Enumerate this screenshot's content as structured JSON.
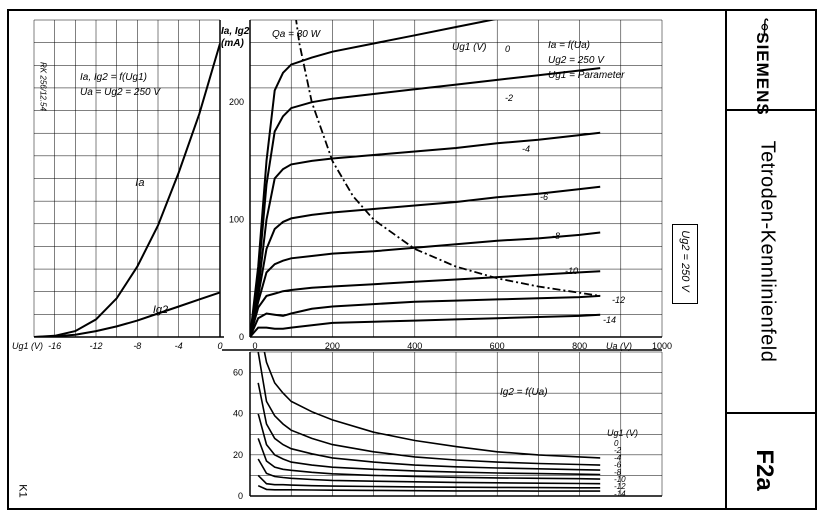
{
  "header": {
    "brand": "SIEMENS",
    "title": "Tetroden-Kennlinienfeld",
    "code": "F2a",
    "ug2_note": "Ug2 = 250 V",
    "doc_ref": "RK 256/12.54",
    "corner_mark": "K1"
  },
  "chart_data": [
    {
      "type": "line",
      "id": "transfer",
      "annotation_lines": [
        "Ia, Ig2 = f(Ug1)",
        "Ua = Ug2 = 250 V"
      ],
      "xlabel": "Ug1 (V)",
      "ylabel": "",
      "xlim": [
        -18,
        0
      ],
      "ylim": [
        0,
        270
      ],
      "xticks": [
        -16,
        -12,
        -8,
        -4,
        0
      ],
      "xtick_labels": [
        "-16",
        "-12",
        "-8",
        "-4",
        "0"
      ],
      "series": [
        {
          "name": "Ia",
          "x": [
            -18,
            -16,
            -14,
            -12,
            -10,
            -8,
            -6,
            -4,
            -2,
            0
          ],
          "y": [
            0,
            1,
            5,
            15,
            33,
            60,
            95,
            140,
            190,
            250
          ]
        },
        {
          "name": "Ig2",
          "x": [
            -18,
            -16,
            -14,
            -12,
            -10,
            -8,
            -6,
            -4,
            -2,
            0
          ],
          "y": [
            0,
            0.5,
            2,
            5,
            9,
            14,
            20,
            26,
            32,
            38
          ]
        }
      ]
    },
    {
      "type": "line",
      "id": "anode",
      "annotation_lines": [
        "Ia = f(Ua)",
        "Ug2 = 250 V",
        "Ug1 = Parameter"
      ],
      "ylabel_lines": [
        "Ia, Ig2",
        "(mA)"
      ],
      "xlabel": "Ua (V)",
      "param_label": "Ug1 (V)",
      "power_label": "Qa = 30 W",
      "xlim": [
        0,
        1000
      ],
      "ylim": [
        0,
        270
      ],
      "xticks": [
        0,
        200,
        400,
        600,
        800,
        1000
      ],
      "xtick_labels": [
        "0",
        "200",
        "400",
        "600",
        "800",
        "1000"
      ],
      "yticks": [
        0,
        100,
        200
      ],
      "ytick_labels": [
        "0",
        "100",
        "200"
      ],
      "series": [
        {
          "name": "0",
          "x": [
            0,
            20,
            40,
            60,
            80,
            100,
            150,
            200,
            300,
            400,
            500,
            600,
            680
          ],
          "y": [
            0,
            60,
            150,
            210,
            225,
            232,
            238,
            243,
            250,
            257,
            264,
            271,
            277
          ]
        },
        {
          "name": "-2",
          "x": [
            0,
            20,
            40,
            60,
            80,
            100,
            150,
            200,
            300,
            400,
            500,
            600,
            700,
            800,
            850
          ],
          "y": [
            0,
            50,
            130,
            175,
            188,
            195,
            200,
            203,
            207,
            211,
            215,
            219,
            223,
            227,
            229
          ]
        },
        {
          "name": "-4",
          "x": [
            0,
            20,
            40,
            60,
            80,
            100,
            150,
            200,
            300,
            400,
            500,
            600,
            700,
            800,
            850
          ],
          "y": [
            0,
            40,
            100,
            135,
            143,
            147,
            150,
            152,
            155,
            158,
            161,
            165,
            168,
            172,
            174
          ]
        },
        {
          "name": "-6",
          "x": [
            0,
            20,
            40,
            60,
            80,
            100,
            150,
            200,
            300,
            400,
            500,
            600,
            700,
            800,
            850
          ],
          "y": [
            0,
            35,
            75,
            92,
            98,
            101,
            104,
            106,
            109,
            112,
            115,
            119,
            122,
            126,
            128
          ]
        },
        {
          "name": "-8",
          "x": [
            0,
            20,
            40,
            60,
            80,
            100,
            150,
            200,
            300,
            400,
            500,
            600,
            700,
            800,
            850
          ],
          "y": [
            0,
            30,
            55,
            62,
            65,
            67,
            69,
            71,
            73,
            76,
            79,
            82,
            84,
            87,
            89
          ]
        },
        {
          "name": "-10",
          "x": [
            0,
            20,
            40,
            60,
            80,
            100,
            150,
            200,
            300,
            400,
            500,
            600,
            700,
            800,
            850
          ],
          "y": [
            0,
            25,
            35,
            37,
            39,
            40,
            42,
            43,
            45,
            47,
            49,
            51,
            53,
            55,
            56
          ]
        },
        {
          "name": "-12",
          "x": [
            0,
            20,
            40,
            60,
            80,
            100,
            150,
            200,
            300,
            400,
            500,
            600,
            700,
            800,
            850
          ],
          "y": [
            0,
            16,
            20,
            19,
            18,
            20,
            24,
            26,
            28,
            30,
            31,
            32,
            33,
            34,
            35
          ]
        },
        {
          "name": "-14",
          "x": [
            0,
            20,
            40,
            60,
            80,
            100,
            150,
            200,
            300,
            400,
            500,
            600,
            700,
            800,
            850
          ],
          "y": [
            0,
            8,
            8,
            7,
            7,
            8,
            10,
            12,
            13,
            14,
            15,
            16,
            17,
            18,
            19
          ]
        },
        {
          "name": "Qa = 30 W",
          "x": [
            100,
            120,
            150,
            200,
            250,
            300,
            400,
            500,
            600,
            700,
            850
          ],
          "y": [
            300,
            250,
            200,
            150,
            120,
            100,
            75,
            60,
            50,
            43,
            35
          ]
        }
      ]
    },
    {
      "type": "line",
      "id": "screen",
      "annotation_lines": [
        "Ig2 = f(Ua)"
      ],
      "param_label": "Ug1 (V)",
      "xlim": [
        0,
        1000
      ],
      "ylim": [
        0,
        70
      ],
      "yticks": [
        0,
        20,
        40,
        60
      ],
      "ytick_labels": [
        "0",
        "20",
        "40",
        "60"
      ],
      "series": [
        {
          "name": "0",
          "x": [
            30,
            40,
            60,
            80,
            100,
            150,
            200,
            300,
            400,
            500,
            600,
            700,
            800,
            850
          ],
          "y": [
            75,
            65,
            55,
            50,
            46,
            41,
            37,
            31,
            27,
            24,
            21.5,
            20,
            19,
            18.5
          ]
        },
        {
          "name": "-2",
          "x": [
            20,
            40,
            60,
            80,
            100,
            150,
            200,
            300,
            400,
            500,
            600,
            700,
            800,
            850
          ],
          "y": [
            70,
            46,
            39,
            35,
            32,
            28,
            25,
            21.5,
            19,
            17.5,
            16.5,
            15.8,
            15.3,
            15
          ]
        },
        {
          "name": "-4",
          "x": [
            20,
            40,
            60,
            80,
            100,
            150,
            200,
            300,
            400,
            500,
            600,
            700,
            800,
            850
          ],
          "y": [
            55,
            35,
            28,
            25,
            23,
            20.5,
            18.5,
            16.5,
            15,
            14.2,
            13.6,
            13.2,
            12.8,
            12.6
          ]
        },
        {
          "name": "-6",
          "x": [
            20,
            40,
            60,
            80,
            100,
            150,
            200,
            300,
            400,
            500,
            600,
            700,
            800,
            850
          ],
          "y": [
            40,
            25,
            20,
            18,
            16.5,
            15,
            14,
            13,
            12.2,
            11.6,
            11.2,
            10.9,
            10.6,
            10.4
          ]
        },
        {
          "name": "-8",
          "x": [
            20,
            40,
            60,
            80,
            100,
            150,
            200,
            300,
            400,
            500,
            600,
            700,
            800,
            850
          ],
          "y": [
            28,
            17,
            14,
            13,
            12.5,
            11.5,
            10.8,
            10,
            9.5,
            9.1,
            8.8,
            8.6,
            8.4,
            8.2
          ]
        },
        {
          "name": "-10",
          "x": [
            20,
            40,
            60,
            80,
            100,
            150,
            200,
            300,
            400,
            500,
            600,
            700,
            800,
            850
          ],
          "y": [
            18,
            11,
            9.5,
            9,
            8.6,
            8,
            7.6,
            7.2,
            6.9,
            6.6,
            6.4,
            6.2,
            6.1,
            6
          ]
        },
        {
          "name": "-12",
          "x": [
            20,
            40,
            60,
            80,
            100,
            150,
            200,
            300,
            400,
            500,
            600,
            700,
            800,
            850
          ],
          "y": [
            10,
            6,
            5.5,
            5.5,
            5.3,
            5,
            4.8,
            4.6,
            4.4,
            4.3,
            4.2,
            4.1,
            4,
            4
          ]
        },
        {
          "name": "-14",
          "x": [
            20,
            40,
            60,
            80,
            100,
            150,
            200,
            300,
            400,
            500,
            600,
            700,
            800,
            850
          ],
          "y": [
            5,
            3.2,
            3,
            3,
            3,
            2.9,
            2.8,
            2.7,
            2.6,
            2.5,
            2.5,
            2.4,
            2.4,
            2.4
          ]
        }
      ]
    }
  ]
}
